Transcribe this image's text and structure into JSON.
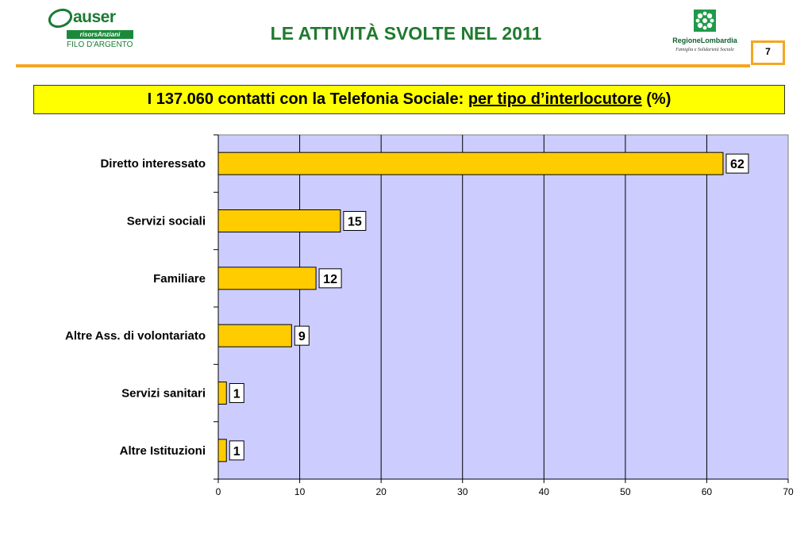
{
  "header": {
    "auser_logo_name": "auser",
    "auser_logo_bar": "risorsAnziani",
    "auser_logo_sub": "FILO D'ARGENTO",
    "title": "LE ATTIVITÀ SVOLTE NEL 2011",
    "region_logo_name": "RegioneLombardia",
    "region_logo_sub": "Famiglia e Solidarietà Sociale",
    "page_number": "7"
  },
  "banner": {
    "prefix": "I 137.060 contatti con la Telefonia Sociale: ",
    "underlined": "per tipo d’interlocutore",
    "suffix": " (%)"
  },
  "colors": {
    "bar_fill": "#ffcc00",
    "plot_background": "#ccccff",
    "title_color": "#1f7a2e",
    "accent": "#f5a623",
    "banner_background": "#ffff00"
  },
  "chart_data": {
    "type": "bar",
    "orientation": "horizontal",
    "categories": [
      "Diretto interessato",
      "Servizi sociali",
      "Familiare",
      "Altre Ass. di volontariato",
      "Servizi sanitari",
      "Altre Istituzioni"
    ],
    "values": [
      62,
      15,
      12,
      9,
      1,
      1
    ],
    "data_labels": [
      "62",
      "15",
      "12",
      "9",
      "1",
      "1"
    ],
    "xlim": [
      0,
      70
    ],
    "x_ticks": [
      "0",
      "10",
      "20",
      "30",
      "40",
      "50",
      "60",
      "70"
    ],
    "grid": "vertical gridlines",
    "legend": "none"
  }
}
